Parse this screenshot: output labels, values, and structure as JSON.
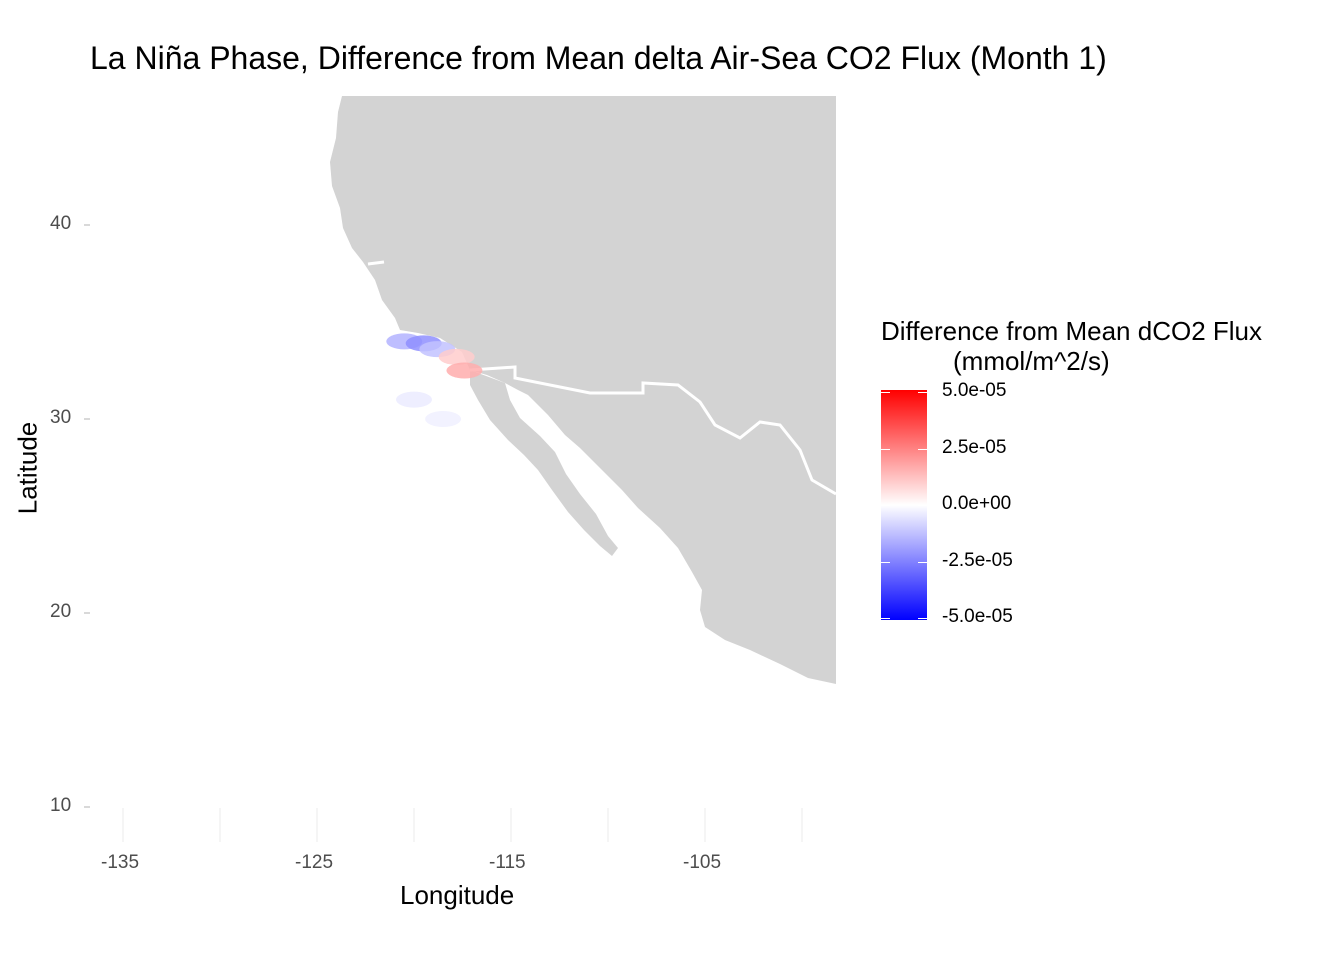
{
  "chart_data": {
    "type": "map",
    "title": "La Niña Phase, Difference from Mean delta Air-Sea CO2 Flux (Month 1)",
    "xlabel": "Longitude",
    "ylabel": "Latitude",
    "xlim": [
      -137,
      -98
    ],
    "ylim": [
      10,
      46
    ],
    "x_ticks": [
      -135,
      -125,
      -115,
      -105
    ],
    "y_ticks": [
      40,
      30,
      20,
      10
    ],
    "x_tick_labels": [
      "-135",
      "-125",
      "-115",
      "-105"
    ],
    "y_tick_labels": [
      "40",
      "30",
      "20",
      "10"
    ],
    "land_color": "#d3d3d3",
    "border_color": "#ffffff",
    "legend": {
      "title_line1": "Difference from Mean dCO2 Flux",
      "title_line2": "(mmol/m^2/s)",
      "placement": "right",
      "colors": {
        "high": "#ff0000",
        "mid": "#ffffff",
        "low": "#0000ff"
      },
      "range": [
        -5e-05,
        5e-05
      ],
      "labels": [
        "5.0e-05",
        "2.5e-05",
        "0.0e+00",
        "-2.5e-05",
        "-5.0e-05"
      ]
    },
    "anomaly_cells": [
      {
        "lon": -120.5,
        "lat": 34.0,
        "value": -1.5e-05
      },
      {
        "lon": -119.5,
        "lat": 33.9,
        "value": -2.2e-05
      },
      {
        "lon": -118.8,
        "lat": 33.6,
        "value": -1.2e-05
      },
      {
        "lon": -117.8,
        "lat": 33.2,
        "value": 1e-05
      },
      {
        "lon": -117.4,
        "lat": 32.5,
        "value": 1.6e-05
      },
      {
        "lon": -120.0,
        "lat": 31.0,
        "value": -4e-06
      },
      {
        "lon": -118.5,
        "lat": 30.0,
        "value": -3e-06
      }
    ]
  }
}
